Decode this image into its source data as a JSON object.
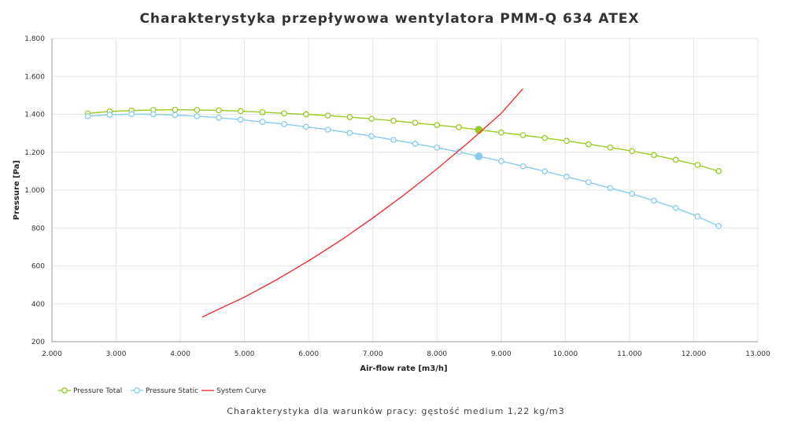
{
  "chart_data": {
    "type": "line",
    "title": "Charakterystyka przepływowa wentylatora PMM-Q 634 ATEX",
    "subtitle": "Charakterystyka dla warunków pracy: gęstość medium 1,22 kg/m3",
    "xlabel": "Air-flow rate [m3/h]",
    "ylabel": "Pressure [Pa]",
    "xlim": [
      2000,
      13000
    ],
    "ylim": [
      200,
      1800
    ],
    "x_ticks": [
      2000,
      3000,
      4000,
      5000,
      6000,
      7000,
      8000,
      9000,
      10000,
      11000,
      12000,
      13000
    ],
    "x_tick_labels": [
      "2.000",
      "3.000",
      "4.000",
      "5.000",
      "6.000",
      "7.000",
      "8.000",
      "9.000",
      "10.000",
      "11.000",
      "12.000",
      "13.000"
    ],
    "y_ticks": [
      200,
      400,
      600,
      800,
      1000,
      1200,
      1400,
      1600,
      1800
    ],
    "y_tick_labels": [
      "200",
      "400",
      "600",
      "800",
      "1.000",
      "1.200",
      "1.400",
      "1.600",
      "1.800"
    ],
    "grid": true,
    "legend_position": "bottom-left",
    "operating_point_x": 8650,
    "series": [
      {
        "name": "Pressure Total",
        "color": "#99cc22",
        "marker": "circle",
        "x": [
          2560,
          2900,
          3240,
          3580,
          3920,
          4260,
          4600,
          4940,
          5280,
          5620,
          5960,
          6300,
          6640,
          6980,
          7320,
          7660,
          8000,
          8340,
          8650,
          9000,
          9340,
          9680,
          10020,
          10360,
          10700,
          11040,
          11380,
          11720,
          12060,
          12390
        ],
        "y": [
          1405,
          1415,
          1420,
          1423,
          1424,
          1423,
          1421,
          1417,
          1411,
          1405,
          1400,
          1393,
          1385,
          1376,
          1366,
          1355,
          1343,
          1332,
          1318,
          1304,
          1290,
          1275,
          1260,
          1242,
          1225,
          1206,
          1185,
          1160,
          1133,
          1100
        ]
      },
      {
        "name": "Pressure Static",
        "color": "#88ccee",
        "marker": "circle",
        "x": [
          2560,
          2900,
          3240,
          3580,
          3920,
          4260,
          4600,
          4940,
          5280,
          5620,
          5960,
          6300,
          6640,
          6980,
          7320,
          7660,
          8000,
          8340,
          8650,
          9000,
          9340,
          9680,
          10020,
          10360,
          10700,
          11040,
          11380,
          11720,
          12060,
          12390
        ],
        "y": [
          1390,
          1398,
          1401,
          1400,
          1396,
          1390,
          1382,
          1372,
          1360,
          1348,
          1334,
          1319,
          1302,
          1285,
          1265,
          1245,
          1224,
          1202,
          1178,
          1153,
          1126,
          1099,
          1071,
          1041,
          1011,
          980,
          944,
          906,
          861,
          810
        ]
      },
      {
        "name": "System Curve",
        "color": "#ee3333",
        "marker": "none",
        "x": [
          4340,
          4700,
          5000,
          5500,
          6000,
          6500,
          7000,
          7500,
          8000,
          8500,
          9000,
          9340
        ],
        "y": [
          330,
          388,
          435,
          527,
          627,
          735,
          853,
          978,
          1112,
          1254,
          1405,
          1535
        ]
      }
    ]
  }
}
